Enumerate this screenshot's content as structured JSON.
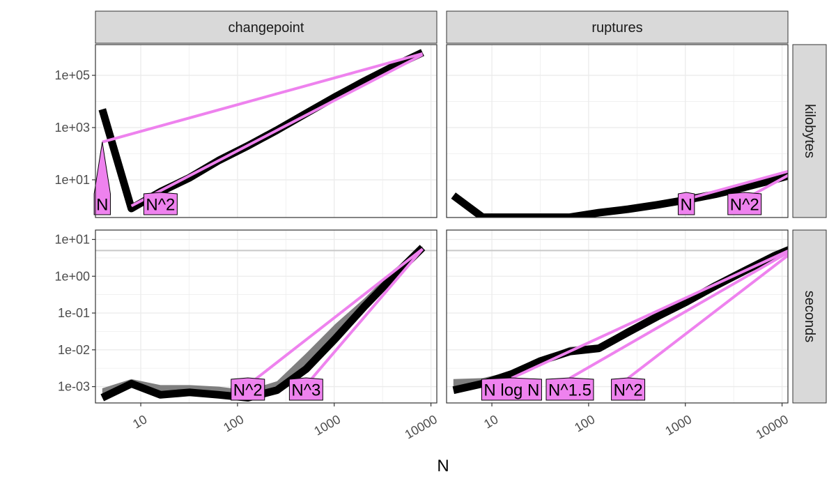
{
  "chart_data": {
    "type": "line",
    "xlabel": "N",
    "x_scale": "log10",
    "x_ticks": [
      "10",
      "100",
      "1000",
      "10000"
    ],
    "columns": [
      "changepoint",
      "ruptures"
    ],
    "rows": [
      "kilobytes",
      "seconds"
    ],
    "y_scale": "log10",
    "y_ticks": {
      "kilobytes": [
        "1e+01",
        "1e+03",
        "1e+05"
      ],
      "seconds": [
        "1e-03",
        "1e-02",
        "1e-01",
        "1e+00",
        "1e+01"
      ]
    },
    "reference_line": {
      "row": "seconds",
      "y": 5
    },
    "colors": {
      "measured": "#000000",
      "measured_band": "#7f7f7f",
      "reference": "#ee82ee",
      "strip_fill": "#d9d9d9",
      "grid": "#ebebeb",
      "hline": "#c8c8c8"
    },
    "panels": [
      {
        "column": "changepoint",
        "row": "kilobytes",
        "measured": {
          "x": [
            4,
            8,
            16,
            32,
            64,
            128,
            256,
            512,
            1024,
            2048,
            4096,
            8192
          ],
          "y": [
            5000,
            0.8,
            3.5,
            12,
            55,
            200,
            800,
            3500,
            15000,
            60000,
            220000,
            750000
          ]
        },
        "references": [
          {
            "label": "N",
            "x": [
              4,
              8192
            ],
            "y": [
              280,
              680000
            ],
            "label_at": 4
          },
          {
            "label": "N^2",
            "x": [
              8,
              8192
            ],
            "y": [
              1.0,
              620000
            ],
            "label_at": 16
          }
        ]
      },
      {
        "column": "ruptures",
        "row": "kilobytes",
        "measured": {
          "x": [
            4,
            8,
            16,
            32,
            64,
            128,
            256,
            512,
            1024,
            2048,
            4096,
            8192,
            16384
          ],
          "y": [
            2.5,
            0.37,
            0.37,
            0.37,
            0.37,
            0.55,
            0.75,
            1.1,
            1.7,
            2.8,
            5.2,
            10,
            20
          ]
        },
        "references": [
          {
            "label": "N",
            "x": [
              1024,
              16384
            ],
            "y": [
              1.8,
              30
            ],
            "label_at": 1024
          },
          {
            "label": "N^2",
            "x": [
              4096,
              16384
            ],
            "y": [
              1.8,
              30
            ],
            "label_at": 4096
          }
        ]
      },
      {
        "column": "changepoint",
        "row": "seconds",
        "measured": {
          "x": [
            4,
            8,
            16,
            32,
            64,
            128,
            256,
            512,
            1024,
            2048,
            4096,
            8192
          ],
          "y": [
            0.0005,
            0.0012,
            0.0006,
            0.0007,
            0.0006,
            0.0005,
            0.0008,
            0.003,
            0.02,
            0.15,
            1.0,
            6.0
          ],
          "band_high": [
            0.0009,
            0.0016,
            0.0011,
            0.0011,
            0.001,
            0.0008,
            0.0014,
            0.008,
            0.05,
            0.25,
            1.5,
            6.5
          ]
        },
        "references": [
          {
            "label": "N^2",
            "x": [
              128,
              8192
            ],
            "y": [
              0.0011,
              5.5
            ],
            "label_at": 128
          },
          {
            "label": "N^3",
            "x": [
              512,
              8192
            ],
            "y": [
              0.0011,
              5.5
            ],
            "label_at": 512
          }
        ]
      },
      {
        "column": "ruptures",
        "row": "seconds",
        "measured": {
          "x": [
            4,
            8,
            16,
            32,
            64,
            128,
            256,
            512,
            1024,
            2048,
            4096,
            8192,
            16384
          ],
          "y": [
            0.0008,
            0.0012,
            0.0022,
            0.005,
            0.009,
            0.011,
            0.03,
            0.08,
            0.2,
            0.55,
            1.4,
            3.5,
            7.5
          ],
          "band_high": [
            0.0016,
            0.0017,
            0.0026,
            0.006,
            0.012,
            0.014,
            0.04,
            0.1,
            0.25,
            0.65,
            1.6,
            3.8,
            8.0
          ]
        },
        "references": [
          {
            "label": "N log N",
            "x": [
              16,
              16384
            ],
            "y": [
              0.0017,
              7.5
            ],
            "label_at": 16
          },
          {
            "label": "N^1.5",
            "x": [
              64,
              16384
            ],
            "y": [
              0.0017,
              7.5
            ],
            "label_at": 64
          },
          {
            "label": "N^2",
            "x": [
              256,
              16384
            ],
            "y": [
              0.0017,
              7.5
            ],
            "label_at": 256
          }
        ]
      }
    ]
  }
}
